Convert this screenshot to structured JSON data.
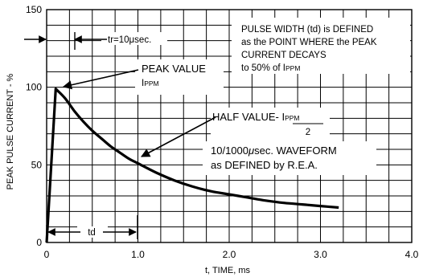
{
  "chart_data": {
    "type": "line",
    "title": "",
    "xlabel": "t, TIME, ms",
    "ylabel": "PEAK PULSE CURRENT - %",
    "xlim": [
      0,
      4.0
    ],
    "ylim": [
      0,
      150
    ],
    "grid": true,
    "x_ticks": [
      "0",
      "1.0",
      "2.0",
      "3.0",
      "4.0"
    ],
    "y_ticks": [
      "0",
      "50",
      "100",
      "150"
    ],
    "series": [
      {
        "x": [
          0,
          0.1,
          0.2,
          0.3,
          0.4,
          0.5,
          0.6,
          0.7,
          0.8,
          0.9,
          1.0,
          1.2,
          1.4,
          1.6,
          1.8,
          2.0,
          2.2,
          2.4,
          2.6,
          2.8,
          3.0,
          3.2
        ],
        "y": [
          0,
          99,
          93,
          85,
          78,
          72,
          67,
          62,
          58,
          54,
          51,
          45,
          40,
          36,
          33,
          31,
          29,
          27,
          25.5,
          24.5,
          23.5,
          22.5
        ]
      }
    ],
    "annotations": {
      "tr": "tr=10",
      "tr_unit": "μsec.",
      "pulse_width_lines": [
        "PULSE WIDTH (td) is DEFINED",
        "as the POINT WHERE the PEAK",
        "CURRENT DECAYS"
      ],
      "pulse_width_last_prefix": "to 50% of I",
      "pulse_width_last_sub": "PPM",
      "peak_value": "PEAK VALUE",
      "peak_value_i": "I",
      "peak_value_sub": "PPM",
      "half_value": "HALF VALUE- ",
      "half_value_i": "I",
      "half_value_sub": "PPM",
      "half_value_den": "2",
      "waveform_prefix": "10/1000",
      "waveform_mu": "μ",
      "waveform_suffix": "sec. WAVEFORM",
      "waveform_line2": "as DEFINED by R.E.A.",
      "td": "td"
    }
  }
}
